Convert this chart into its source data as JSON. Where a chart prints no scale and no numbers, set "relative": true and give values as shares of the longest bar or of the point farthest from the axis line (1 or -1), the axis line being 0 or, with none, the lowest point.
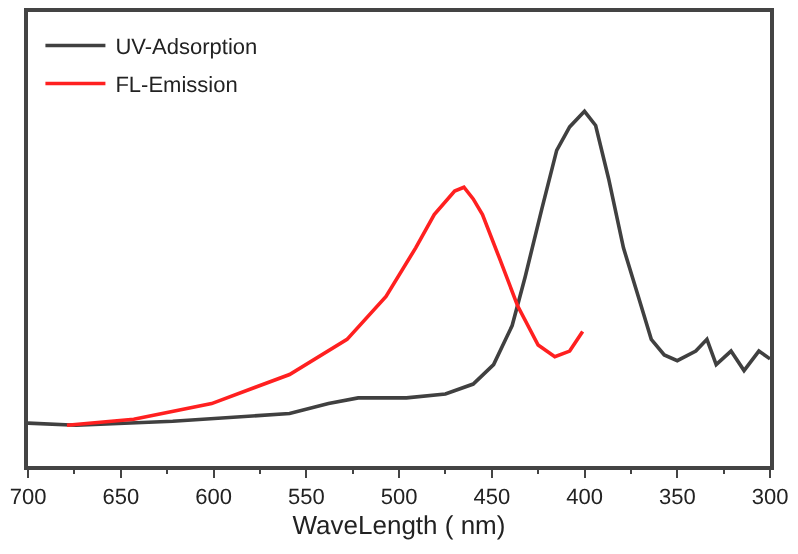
{
  "chart_data": {
    "type": "line",
    "xlabel": "WaveLength ( nm)",
    "relative": true,
    "xlim": [
      700,
      300
    ],
    "xticks": [
      700,
      650,
      600,
      550,
      500,
      450,
      400,
      350,
      300
    ],
    "legend": "top left",
    "series": [
      {
        "name": "UV-Adsorption",
        "color": "#404040",
        "x": [
          700,
          674,
          622,
          559,
          538,
          522,
          496,
          475,
          460,
          449,
          439,
          432,
          423,
          415,
          408,
          400,
          394,
          387,
          379,
          371,
          364,
          357,
          350,
          340,
          334,
          329,
          321,
          314,
          306,
          300
        ],
        "values": [
          0.121,
          0.115,
          0.126,
          0.148,
          0.176,
          0.192,
          0.192,
          0.203,
          0.231,
          0.286,
          0.396,
          0.533,
          0.725,
          0.89,
          0.956,
          1.0,
          0.96,
          0.81,
          0.615,
          0.478,
          0.357,
          0.313,
          0.297,
          0.324,
          0.357,
          0.286,
          0.324,
          0.269,
          0.324,
          0.302
        ]
      },
      {
        "name": "FL-Emission",
        "color": "#ff2020",
        "x": [
          679,
          643,
          601,
          559,
          528,
          507,
          491,
          481,
          470,
          465,
          460,
          455,
          446,
          436,
          425,
          416,
          408,
          401
        ],
        "values": [
          0.115,
          0.132,
          0.176,
          0.258,
          0.357,
          0.478,
          0.615,
          0.709,
          0.775,
          0.786,
          0.753,
          0.709,
          0.588,
          0.451,
          0.341,
          0.308,
          0.324,
          0.379
        ]
      }
    ]
  }
}
